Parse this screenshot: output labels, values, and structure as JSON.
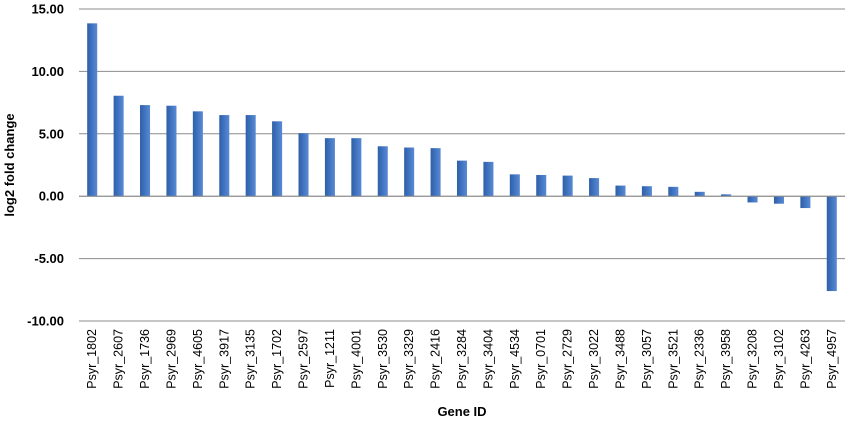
{
  "chart_data": {
    "type": "bar",
    "title": "",
    "xlabel": "Gene ID",
    "ylabel": "log2 fold change",
    "ylim": [
      -10,
      15
    ],
    "yticks": [
      -10,
      -5,
      0,
      5,
      10,
      15
    ],
    "ytick_labels": [
      "-10.00",
      "-5.00",
      "0.00",
      "5.00",
      "10.00",
      "15.00"
    ],
    "grid": true,
    "legend": "none",
    "bar_color": "#3F72BF",
    "categories": [
      "Psyr_1802",
      "Psyr_2607",
      "Psyr_1736",
      "Psyr_2969",
      "Psyr_4605",
      "Psyr_3917",
      "Psyr_3135",
      "Psyr_1702",
      "Psyr_2597",
      "Psyr_1211",
      "Psyr_4001",
      "Psyr_3530",
      "Psyr_3329",
      "Psyr_2416",
      "Psyr_3284",
      "Psyr_3404",
      "Psyr_4534",
      "Psyr_0701",
      "Psyr_2729",
      "Psyr_3022",
      "Psyr_3488",
      "Psyr_3057",
      "Psyr_3521",
      "Psyr_2336",
      "Psyr_3958",
      "Psyr_3208",
      "Psyr_3102",
      "Psyr_4263",
      "Psyr_4957"
    ],
    "values": [
      13.85,
      8.05,
      7.3,
      7.25,
      6.8,
      6.5,
      6.5,
      6.0,
      5.05,
      4.65,
      4.65,
      4.0,
      3.9,
      3.85,
      2.85,
      2.75,
      1.75,
      1.7,
      1.65,
      1.45,
      0.85,
      0.8,
      0.75,
      0.35,
      0.15,
      -0.5,
      -0.6,
      -0.95,
      -7.6
    ]
  }
}
